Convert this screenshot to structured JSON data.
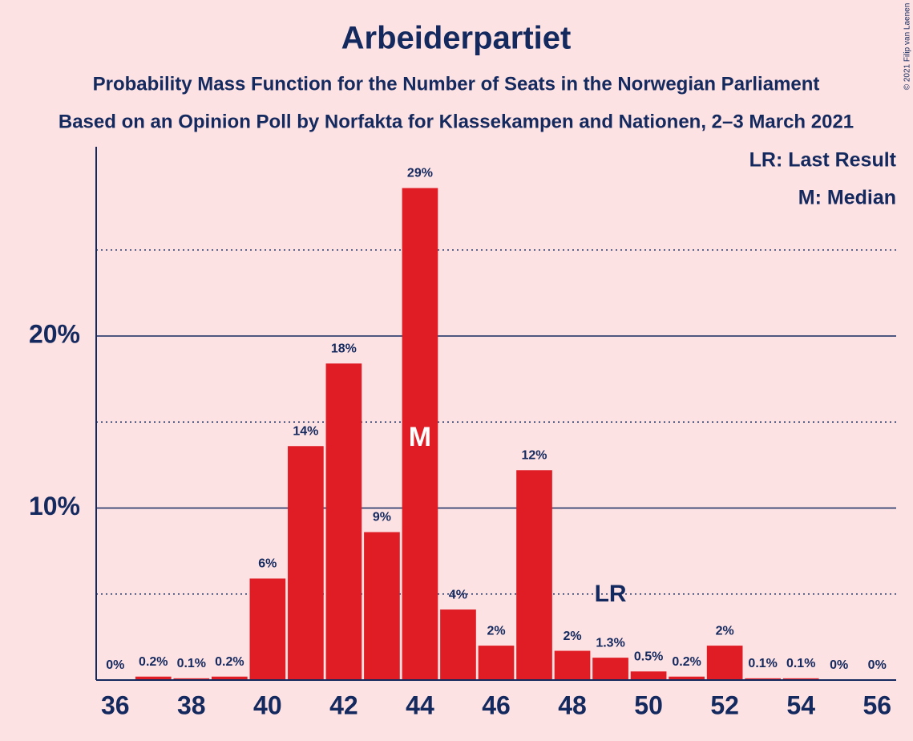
{
  "chart_data": {
    "type": "bar",
    "title": "Arbeiderpartiet",
    "subtitle": "Probability Mass Function for the Number of Seats in the Norwegian Parliament",
    "subtitle2": "Based on an Opinion Poll by Norfakta for Klassekampen and Nationen, 2–3 March 2021",
    "copyright": "© 2021 Filip van Laenen",
    "x": [
      36,
      37,
      38,
      39,
      40,
      41,
      42,
      43,
      44,
      45,
      46,
      47,
      48,
      49,
      50,
      51,
      52,
      53,
      54,
      55,
      56
    ],
    "values": [
      0,
      0.2,
      0.1,
      0.2,
      5.9,
      13.6,
      18.4,
      8.6,
      28.6,
      4.1,
      2.0,
      12.2,
      1.7,
      1.3,
      0.5,
      0.2,
      2.0,
      0.1,
      0.1,
      0,
      0
    ],
    "value_labels": [
      "0%",
      "0.2%",
      "0.1%",
      "0.2%",
      "6%",
      "14%",
      "18%",
      "9%",
      "29%",
      "4%",
      "2%",
      "12%",
      "2%",
      "1.3%",
      "0.5%",
      "0.2%",
      "2%",
      "0.1%",
      "0.1%",
      "0%",
      "0%"
    ],
    "color": "#e01c24",
    "xlim": [
      35.5,
      56.5
    ],
    "xticks": [
      36,
      38,
      40,
      42,
      44,
      46,
      48,
      50,
      52,
      54,
      56
    ],
    "ylim": [
      0,
      31
    ],
    "yticks": [
      {
        "value": 10,
        "label": "10%"
      },
      {
        "value": 20,
        "label": "20%"
      }
    ],
    "yticks_minor": [
      5,
      15,
      25
    ],
    "grid": true,
    "median": {
      "x": 44,
      "label": "M"
    },
    "last_result": {
      "x": 49,
      "label": "LR"
    },
    "legend": [
      "LR: Last Result",
      "M: Median"
    ],
    "legend_position": "upper right"
  }
}
